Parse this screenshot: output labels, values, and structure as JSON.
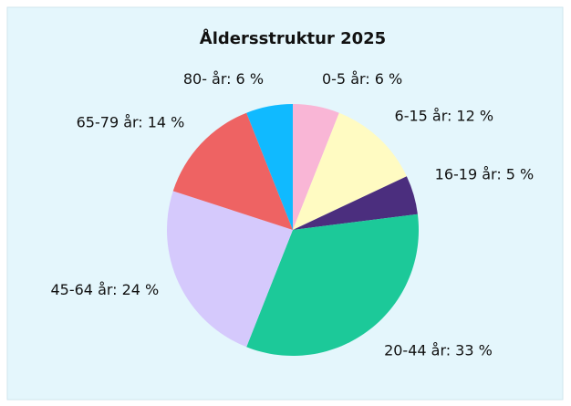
{
  "chart_data": {
    "type": "pie",
    "title": "Åldersstruktur 2025",
    "categories": [
      "0-5 år:",
      "6-15 år:",
      "16-19 år:",
      "20-44 år:",
      "45-64 år:",
      "65-79 år:",
      "80- år:"
    ],
    "values": [
      6,
      12,
      5,
      33,
      24,
      14,
      6
    ],
    "value_labels": [
      "6 %",
      "12 %",
      "5 %",
      "33 %",
      "24 %",
      "14 %",
      "6 %"
    ],
    "colors": [
      "#f9b6d6",
      "#fffbc2",
      "#4b2e7e",
      "#1cc999",
      "#d5c9fc",
      "#ee6363",
      "#10baff"
    ]
  }
}
